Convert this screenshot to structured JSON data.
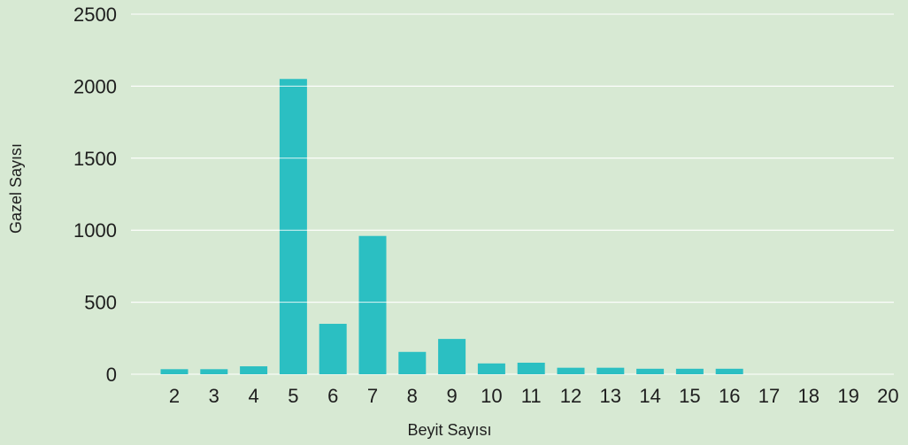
{
  "chart_data": {
    "type": "bar",
    "xlabel": "Beyit Sayısı",
    "ylabel": "Gazel Sayısı",
    "categories": [
      "2",
      "3",
      "4",
      "5",
      "6",
      "7",
      "8",
      "9",
      "10",
      "11",
      "12",
      "13",
      "14",
      "15",
      "16",
      "17",
      "18",
      "19",
      "20"
    ],
    "values": [
      35,
      35,
      55,
      2050,
      350,
      960,
      155,
      245,
      75,
      80,
      45,
      45,
      38,
      38,
      38,
      0,
      0,
      0,
      0
    ],
    "ylim": [
      0,
      2500
    ],
    "yticks": [
      0,
      500,
      1000,
      1500,
      2000,
      2500
    ],
    "grid": true,
    "colors": {
      "background": "#d7e9d3",
      "bar": "#2bbfc2",
      "grid": "#ffffff",
      "text": "#1e1e1e"
    }
  }
}
